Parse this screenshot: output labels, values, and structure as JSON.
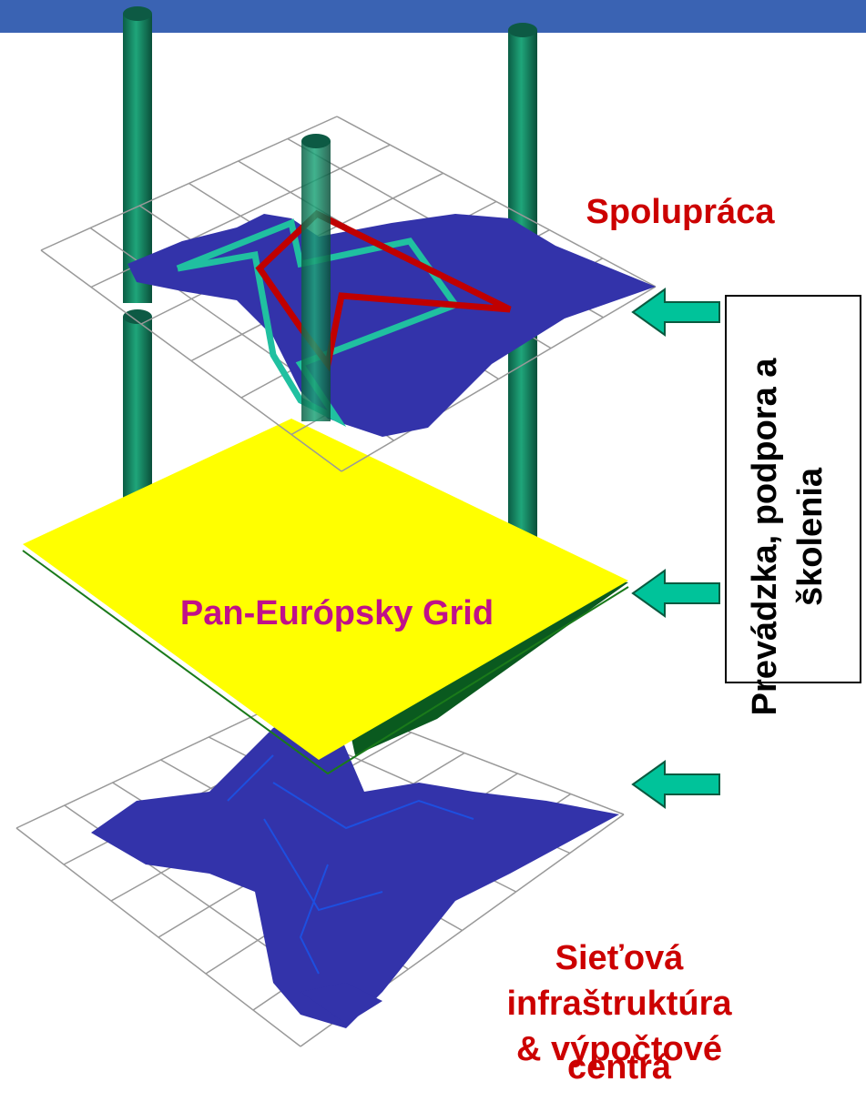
{
  "layers": [
    {
      "label": "Spolupráca"
    },
    {
      "label": "Pan-Európsky Grid"
    },
    {
      "label_lines": [
        "Sieťová",
        "infraštruktúra",
        "& výpočtové",
        "centrá"
      ]
    }
  ],
  "side_box": {
    "lines": [
      "Prevádzka, podpora a",
      "školenia"
    ]
  }
}
